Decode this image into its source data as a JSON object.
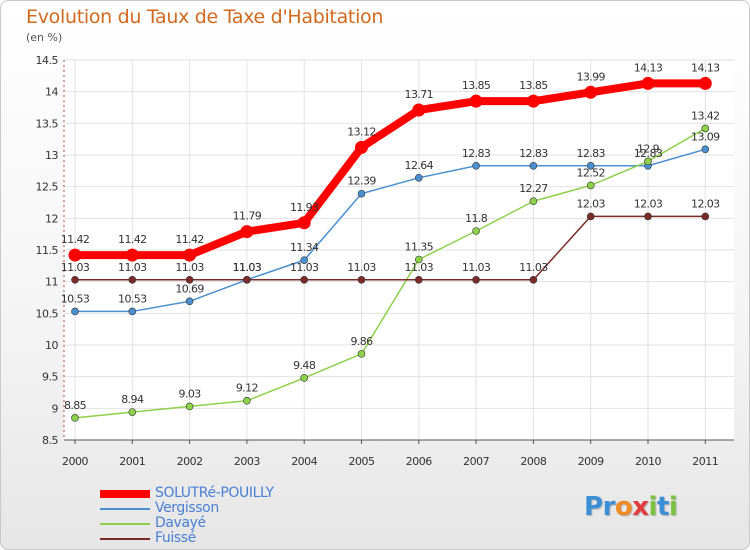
{
  "title": "Evolution du Taux de Taxe d'Habitation",
  "subtitle": "(en %)",
  "logo": {
    "text": "Proxiti",
    "letters": [
      {
        "ch": "P",
        "color": "#3a8fd6"
      },
      {
        "ch": "r",
        "color": "#3a8fd6"
      },
      {
        "ch": "o",
        "color": "#f08a24"
      },
      {
        "ch": "x",
        "color": "#e23b3b"
      },
      {
        "ch": "i",
        "color": "#7cc242"
      },
      {
        "ch": "t",
        "color": "#3a8fd6"
      },
      {
        "ch": "i",
        "color": "#7cc242"
      }
    ]
  },
  "chart_data": {
    "type": "line",
    "title": "Evolution du Taux de Taxe d'Habitation",
    "subtitle": "(en %)",
    "x": [
      "2000",
      "2001",
      "2002",
      "2003",
      "2004",
      "2005",
      "2006",
      "2007",
      "2008",
      "2009",
      "2010",
      "2011"
    ],
    "ylim": [
      8.5,
      14.5
    ],
    "yticks": [
      "8.5",
      "9",
      "9.5",
      "10",
      "10.5",
      "11",
      "11.5",
      "12",
      "12.5",
      "13",
      "13.5",
      "14",
      "14.5"
    ],
    "grid": true,
    "legend_position": "bottom-left",
    "series": [
      {
        "name": "SOLUTRé-POUILLY",
        "color": "#ff0000",
        "highlight": true,
        "values": [
          11.42,
          11.42,
          11.42,
          11.79,
          11.93,
          13.12,
          13.71,
          13.85,
          13.85,
          13.99,
          14.13,
          14.13
        ],
        "labels": [
          "11.42",
          "11.42",
          "11.42",
          "11.79",
          "11.93",
          "13.12",
          "13.71",
          "13.85",
          "13.85",
          "13.99",
          "14.13",
          "14.13"
        ]
      },
      {
        "name": "Vergisson",
        "color": "#4a90cf",
        "values": [
          10.53,
          10.53,
          10.69,
          11.03,
          11.34,
          12.39,
          12.64,
          12.83,
          12.83,
          12.83,
          12.83,
          13.09
        ],
        "labels": [
          "10.53",
          "10.53",
          "10.69",
          "11.03",
          "11.34",
          "12.39",
          "12.64",
          "12.83",
          "12.83",
          "12.83",
          "12.83",
          "13.09"
        ]
      },
      {
        "name": "Davayé",
        "color": "#8ed14a",
        "values": [
          8.85,
          8.94,
          9.03,
          9.12,
          9.48,
          9.86,
          11.35,
          11.8,
          12.27,
          12.52,
          12.9,
          13.42
        ],
        "labels": [
          "8.85",
          "8.94",
          "9.03",
          "9.12",
          "9.48",
          "9.86",
          "11.35",
          "11.8",
          "12.27",
          "12.52",
          "12.9",
          "13.42"
        ]
      },
      {
        "name": "Fuissé",
        "color": "#7b2a2a",
        "values": [
          11.03,
          11.03,
          11.03,
          11.03,
          11.03,
          11.03,
          11.03,
          11.03,
          11.03,
          12.03,
          12.03,
          12.03
        ],
        "labels": [
          "11.03",
          "11.03",
          "11.03",
          "11.03",
          "11.03",
          "11.03",
          "11.03",
          "11.03",
          "11.03",
          "12.03",
          "12.03",
          "12.03"
        ]
      }
    ]
  }
}
